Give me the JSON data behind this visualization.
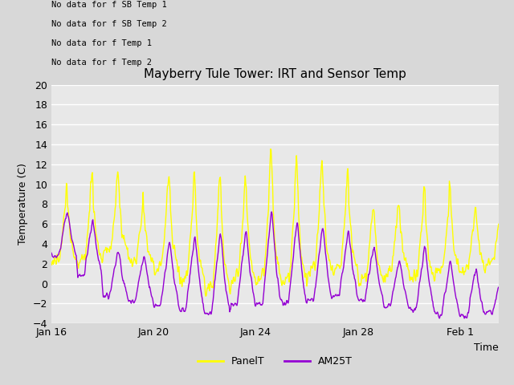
{
  "title": "Mayberry Tule Tower: IRT and Sensor Temp",
  "xlabel": "Time",
  "ylabel": "Temperature (C)",
  "ylim": [
    -4,
    20
  ],
  "xlim_days": [
    0,
    17.5
  ],
  "xtick_positions": [
    0,
    4,
    8,
    12,
    16
  ],
  "xtick_labels": [
    "Jan 16",
    "Jan 20",
    "Jan 24",
    "Jan 28",
    "Feb 1"
  ],
  "panel_color": "#ffff00",
  "am25_color": "#9400d3",
  "fig_bg": "#d8d8d8",
  "plot_bg": "#e8e8e8",
  "no_data_lines": [
    "No data for f SB Temp 1",
    "No data for f SB Temp 2",
    "No data for f Temp 1",
    "No data for f Temp 2"
  ],
  "legend_items": [
    "PanelT",
    "AM25T"
  ],
  "title_fontsize": 11,
  "axis_fontsize": 9,
  "tick_fontsize": 9
}
